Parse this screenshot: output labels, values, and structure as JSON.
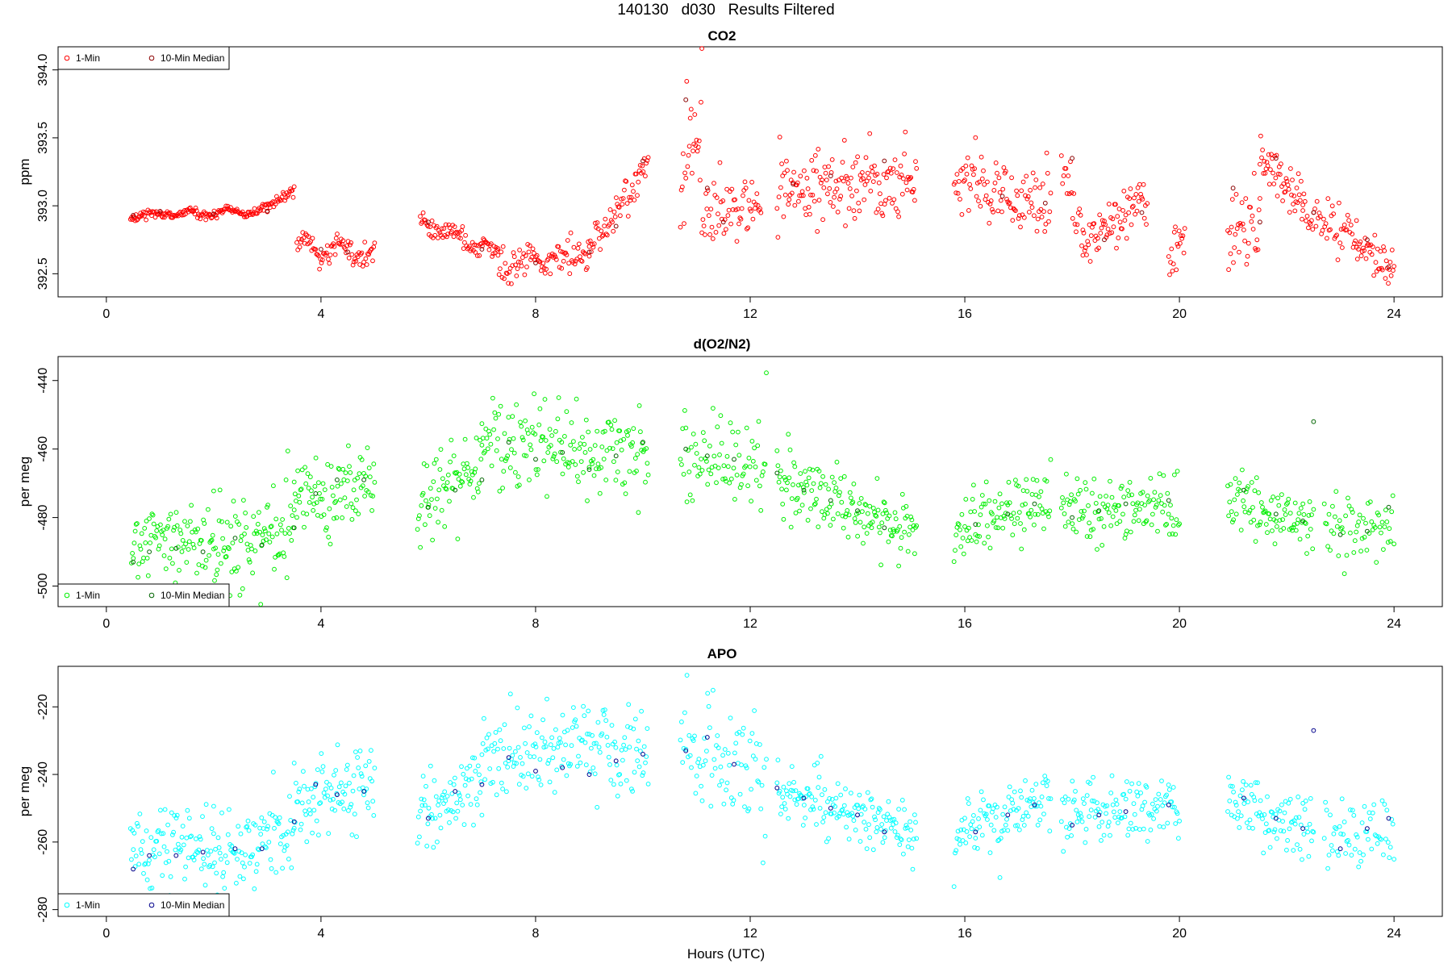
{
  "figure": {
    "title": "140130   d030   Results Filtered",
    "xlabel": "Hours (UTC)"
  },
  "legend": {
    "item1": "1-Min",
    "item2": "10-Min Median"
  },
  "chart_data": [
    {
      "type": "scatter",
      "title": "CO2",
      "ylabel": "ppm",
      "xlim": [
        -0.9,
        24.9
      ],
      "ylim": [
        392.33,
        394.17
      ],
      "x_ticks": [
        0,
        4,
        8,
        12,
        16,
        20,
        24
      ],
      "y_ticks": [
        392.5,
        393.0,
        393.5,
        394.0
      ],
      "y_tick_labels": [
        "392.5",
        "393.0",
        "393.5",
        "394.0"
      ],
      "legend_position": "top-left",
      "colors": {
        "one_min": "#ff0000",
        "median": "#8b0000"
      },
      "segments": [
        {
          "x0": 0.45,
          "x1": 3.0,
          "y0": 392.93,
          "y1": 392.96,
          "sd": 0.015,
          "wave": 0.02,
          "n": 150
        },
        {
          "x0": 3.0,
          "x1": 3.5,
          "y0": 392.98,
          "y1": 393.13,
          "sd": 0.02,
          "wave": 0.0,
          "n": 30
        },
        {
          "x0": 3.55,
          "x1": 5.0,
          "y0": 392.7,
          "y1": 392.65,
          "sd": 0.05,
          "wave": 0.05,
          "n": 80
        },
        {
          "x0": 5.85,
          "x1": 7.3,
          "y0": 392.9,
          "y1": 392.65,
          "sd": 0.04,
          "wave": 0.04,
          "n": 80
        },
        {
          "x0": 7.3,
          "x1": 9.0,
          "y0": 392.55,
          "y1": 392.65,
          "sd": 0.07,
          "wave": 0.03,
          "n": 90
        },
        {
          "x0": 9.0,
          "x1": 10.1,
          "y0": 392.65,
          "y1": 393.35,
          "sd": 0.08,
          "wave": 0.0,
          "n": 60
        },
        {
          "x0": 10.7,
          "x1": 11.1,
          "y0": 393.2,
          "y1": 393.7,
          "sd": 0.3,
          "wave": 0.0,
          "n": 25
        },
        {
          "x0": 11.1,
          "x1": 12.2,
          "y0": 392.9,
          "y1": 393.05,
          "sd": 0.11,
          "wave": 0.0,
          "n": 60
        },
        {
          "x0": 12.5,
          "x1": 15.1,
          "y0": 393.12,
          "y1": 393.2,
          "sd": 0.14,
          "wave": 0.05,
          "n": 150
        },
        {
          "x0": 15.8,
          "x1": 17.6,
          "y0": 393.2,
          "y1": 393.0,
          "sd": 0.12,
          "wave": 0.0,
          "n": 100
        },
        {
          "x0": 17.8,
          "x1": 18.2,
          "y0": 393.2,
          "y1": 392.8,
          "sd": 0.15,
          "wave": 0.0,
          "n": 20
        },
        {
          "x0": 18.2,
          "x1": 19.4,
          "y0": 392.7,
          "y1": 393.1,
          "sd": 0.1,
          "wave": 0.0,
          "n": 70
        },
        {
          "x0": 19.8,
          "x1": 20.1,
          "y0": 392.6,
          "y1": 392.75,
          "sd": 0.12,
          "wave": 0.0,
          "n": 18
        },
        {
          "x0": 20.9,
          "x1": 21.5,
          "y0": 392.75,
          "y1": 392.9,
          "sd": 0.18,
          "wave": 0.0,
          "n": 35
        },
        {
          "x0": 21.5,
          "x1": 22.3,
          "y0": 393.4,
          "y1": 392.95,
          "sd": 0.09,
          "wave": 0.0,
          "n": 50
        },
        {
          "x0": 22.3,
          "x1": 23.3,
          "y0": 392.95,
          "y1": 392.75,
          "sd": 0.08,
          "wave": 0.0,
          "n": 50
        },
        {
          "x0": 23.3,
          "x1": 24.0,
          "y0": 392.7,
          "y1": 392.55,
          "sd": 0.09,
          "wave": 0.0,
          "n": 40
        }
      ],
      "medians": [
        {
          "x": 0.5,
          "y": 392.93
        },
        {
          "x": 1.0,
          "y": 392.96
        },
        {
          "x": 2.0,
          "y": 392.94
        },
        {
          "x": 3.0,
          "y": 392.96
        },
        {
          "x": 4.0,
          "y": 392.68
        },
        {
          "x": 4.5,
          "y": 392.66
        },
        {
          "x": 6.0,
          "y": 392.88
        },
        {
          "x": 7.0,
          "y": 392.68
        },
        {
          "x": 8.0,
          "y": 392.58
        },
        {
          "x": 9.0,
          "y": 392.66
        },
        {
          "x": 9.5,
          "y": 392.85
        },
        {
          "x": 10.0,
          "y": 393.33
        },
        {
          "x": 10.8,
          "y": 393.78
        },
        {
          "x": 11.2,
          "y": 393.13
        },
        {
          "x": 11.5,
          "y": 392.88
        },
        {
          "x": 12.8,
          "y": 393.16
        },
        {
          "x": 13.5,
          "y": 393.22
        },
        {
          "x": 14.5,
          "y": 393.33
        },
        {
          "x": 16.7,
          "y": 393.07
        },
        {
          "x": 17.5,
          "y": 393.02
        },
        {
          "x": 18.0,
          "y": 393.35
        },
        {
          "x": 18.6,
          "y": 392.75
        },
        {
          "x": 19.3,
          "y": 392.95
        },
        {
          "x": 21.0,
          "y": 393.13
        },
        {
          "x": 21.5,
          "y": 392.88
        },
        {
          "x": 21.8,
          "y": 393.35
        },
        {
          "x": 22.5,
          "y": 392.95
        },
        {
          "x": 23.5,
          "y": 392.75
        },
        {
          "x": 23.9,
          "y": 392.55
        }
      ]
    },
    {
      "type": "scatter",
      "title": "d(O2/N2)",
      "ylabel": "per meg",
      "xlim": [
        -0.9,
        24.9
      ],
      "ylim": [
        -506,
        -433
      ],
      "x_ticks": [
        0,
        4,
        8,
        12,
        16,
        20,
        24
      ],
      "y_ticks": [
        -500,
        -480,
        -460,
        -440
      ],
      "y_tick_labels": [
        "-500",
        "-480",
        "-460",
        "-440"
      ],
      "legend_position": "bottom-left",
      "colors": {
        "one_min": "#00ee00",
        "median": "#006400"
      },
      "segments": [
        {
          "x0": 0.45,
          "x1": 2.0,
          "y0": -488,
          "y1": -487,
          "sd": 5.5,
          "wave": 0.0,
          "n": 90
        },
        {
          "x0": 2.0,
          "x1": 3.5,
          "y0": -488,
          "y1": -483,
          "sd": 7.5,
          "wave": 0.0,
          "n": 90
        },
        {
          "x0": 3.5,
          "x1": 5.0,
          "y0": -475,
          "y1": -469,
          "sd": 6.5,
          "wave": 0.0,
          "n": 90
        },
        {
          "x0": 5.8,
          "x1": 7.0,
          "y0": -477,
          "y1": -466,
          "sd": 6.5,
          "wave": 0.0,
          "n": 70
        },
        {
          "x0": 7.0,
          "x1": 10.1,
          "y0": -458,
          "y1": -460,
          "sd": 6.5,
          "wave": 0.0,
          "n": 170
        },
        {
          "x0": 10.7,
          "x1": 12.3,
          "y0": -462,
          "y1": -466,
          "sd": 8.0,
          "wave": 0.0,
          "n": 80
        },
        {
          "x0": 12.5,
          "x1": 15.1,
          "y0": -468,
          "y1": -485,
          "sd": 4.5,
          "wave": 0.0,
          "n": 150
        },
        {
          "x0": 15.8,
          "x1": 17.6,
          "y0": -485,
          "y1": -472,
          "sd": 5.0,
          "wave": 0.0,
          "n": 100
        },
        {
          "x0": 17.8,
          "x1": 20.0,
          "y0": -478,
          "y1": -476,
          "sd": 5.0,
          "wave": 0.0,
          "n": 120
        },
        {
          "x0": 20.9,
          "x1": 22.5,
          "y0": -473,
          "y1": -482,
          "sd": 4.5,
          "wave": 0.0,
          "n": 90
        },
        {
          "x0": 22.7,
          "x1": 24.0,
          "y0": -484,
          "y1": -482,
          "sd": 5.5,
          "wave": 0.0,
          "n": 60
        }
      ],
      "medians": [
        {
          "x": 0.5,
          "y": -493
        },
        {
          "x": 0.8,
          "y": -490
        },
        {
          "x": 1.3,
          "y": -489
        },
        {
          "x": 1.8,
          "y": -490
        },
        {
          "x": 2.4,
          "y": -486
        },
        {
          "x": 2.9,
          "y": -488
        },
        {
          "x": 3.5,
          "y": -483
        },
        {
          "x": 3.9,
          "y": -473
        },
        {
          "x": 4.3,
          "y": -469
        },
        {
          "x": 4.8,
          "y": -469
        },
        {
          "x": 6.0,
          "y": -477
        },
        {
          "x": 6.5,
          "y": -472
        },
        {
          "x": 7.0,
          "y": -469
        },
        {
          "x": 7.5,
          "y": -458
        },
        {
          "x": 8.0,
          "y": -463
        },
        {
          "x": 8.5,
          "y": -461
        },
        {
          "x": 9.0,
          "y": -466
        },
        {
          "x": 9.5,
          "y": -462
        },
        {
          "x": 10.0,
          "y": -458
        },
        {
          "x": 10.8,
          "y": -460
        },
        {
          "x": 11.2,
          "y": -462
        },
        {
          "x": 11.7,
          "y": -463
        },
        {
          "x": 12.5,
          "y": -467
        },
        {
          "x": 13.0,
          "y": -472
        },
        {
          "x": 13.5,
          "y": -475
        },
        {
          "x": 14.0,
          "y": -478
        },
        {
          "x": 14.5,
          "y": -483
        },
        {
          "x": 16.2,
          "y": -482
        },
        {
          "x": 16.8,
          "y": -479
        },
        {
          "x": 17.3,
          "y": -476
        },
        {
          "x": 18.0,
          "y": -480
        },
        {
          "x": 18.5,
          "y": -478
        },
        {
          "x": 19.0,
          "y": -476
        },
        {
          "x": 19.8,
          "y": -475
        },
        {
          "x": 21.2,
          "y": -472
        },
        {
          "x": 21.8,
          "y": -479
        },
        {
          "x": 22.3,
          "y": -481
        },
        {
          "x": 22.5,
          "y": -452
        },
        {
          "x": 23.0,
          "y": -485
        },
        {
          "x": 23.5,
          "y": -484
        },
        {
          "x": 23.9,
          "y": -477
        }
      ]
    },
    {
      "type": "scatter",
      "title": "APO",
      "ylabel": "per meg",
      "xlim": [
        -0.9,
        24.9
      ],
      "ylim": [
        -282,
        -208
      ],
      "x_ticks": [
        0,
        4,
        8,
        12,
        16,
        20,
        24
      ],
      "y_ticks": [
        -280,
        -260,
        -240,
        -220
      ],
      "y_tick_labels": [
        "-280",
        "-260",
        "-240",
        "-220"
      ],
      "legend_position": "bottom-left",
      "colors": {
        "one_min": "#00ffff",
        "median": "#00008b"
      },
      "segments": [
        {
          "x0": 0.45,
          "x1": 2.0,
          "y0": -262,
          "y1": -262,
          "sd": 5.5,
          "wave": 0.0,
          "n": 90
        },
        {
          "x0": 2.0,
          "x1": 3.5,
          "y0": -264,
          "y1": -256,
          "sd": 7.5,
          "wave": 0.0,
          "n": 90
        },
        {
          "x0": 3.5,
          "x1": 5.0,
          "y0": -248,
          "y1": -244,
          "sd": 6.5,
          "wave": 0.0,
          "n": 90
        },
        {
          "x0": 5.8,
          "x1": 7.0,
          "y0": -253,
          "y1": -240,
          "sd": 6.5,
          "wave": 0.0,
          "n": 70
        },
        {
          "x0": 7.0,
          "x1": 10.1,
          "y0": -234,
          "y1": -232,
          "sd": 6.5,
          "wave": 0.0,
          "n": 170
        },
        {
          "x0": 10.7,
          "x1": 12.3,
          "y0": -232,
          "y1": -242,
          "sd": 8.0,
          "wave": 0.0,
          "n": 80
        },
        {
          "x0": 12.5,
          "x1": 15.1,
          "y0": -244,
          "y1": -258,
          "sd": 4.5,
          "wave": 0.0,
          "n": 150
        },
        {
          "x0": 15.8,
          "x1": 17.6,
          "y0": -258,
          "y1": -246,
          "sd": 5.0,
          "wave": 0.0,
          "n": 100
        },
        {
          "x0": 17.8,
          "x1": 20.0,
          "y0": -252,
          "y1": -250,
          "sd": 5.0,
          "wave": 0.0,
          "n": 120
        },
        {
          "x0": 20.9,
          "x1": 22.5,
          "y0": -247,
          "y1": -256,
          "sd": 4.5,
          "wave": 0.0,
          "n": 90
        },
        {
          "x0": 22.7,
          "x1": 24.0,
          "y0": -258,
          "y1": -256,
          "sd": 5.5,
          "wave": 0.0,
          "n": 60
        }
      ],
      "medians": [
        {
          "x": 0.5,
          "y": -268
        },
        {
          "x": 0.8,
          "y": -264
        },
        {
          "x": 1.3,
          "y": -264
        },
        {
          "x": 1.8,
          "y": -263
        },
        {
          "x": 2.4,
          "y": -262
        },
        {
          "x": 2.9,
          "y": -262
        },
        {
          "x": 3.5,
          "y": -254
        },
        {
          "x": 3.9,
          "y": -243
        },
        {
          "x": 4.3,
          "y": -246
        },
        {
          "x": 4.8,
          "y": -245
        },
        {
          "x": 6.0,
          "y": -253
        },
        {
          "x": 6.5,
          "y": -245
        },
        {
          "x": 7.0,
          "y": -243
        },
        {
          "x": 7.5,
          "y": -235
        },
        {
          "x": 8.0,
          "y": -239
        },
        {
          "x": 8.5,
          "y": -238
        },
        {
          "x": 9.0,
          "y": -240
        },
        {
          "x": 9.5,
          "y": -236
        },
        {
          "x": 10.0,
          "y": -234
        },
        {
          "x": 10.8,
          "y": -233
        },
        {
          "x": 11.2,
          "y": -229
        },
        {
          "x": 11.7,
          "y": -237
        },
        {
          "x": 12.5,
          "y": -244
        },
        {
          "x": 13.0,
          "y": -247
        },
        {
          "x": 13.5,
          "y": -250
        },
        {
          "x": 14.0,
          "y": -252
        },
        {
          "x": 14.5,
          "y": -257
        },
        {
          "x": 16.2,
          "y": -257
        },
        {
          "x": 16.8,
          "y": -252
        },
        {
          "x": 17.3,
          "y": -249
        },
        {
          "x": 18.0,
          "y": -255
        },
        {
          "x": 18.5,
          "y": -252
        },
        {
          "x": 19.0,
          "y": -251
        },
        {
          "x": 19.8,
          "y": -249
        },
        {
          "x": 21.2,
          "y": -247
        },
        {
          "x": 21.8,
          "y": -253
        },
        {
          "x": 22.3,
          "y": -256
        },
        {
          "x": 22.5,
          "y": -227
        },
        {
          "x": 23.0,
          "y": -262
        },
        {
          "x": 23.5,
          "y": -256
        },
        {
          "x": 23.9,
          "y": -253
        }
      ]
    }
  ]
}
